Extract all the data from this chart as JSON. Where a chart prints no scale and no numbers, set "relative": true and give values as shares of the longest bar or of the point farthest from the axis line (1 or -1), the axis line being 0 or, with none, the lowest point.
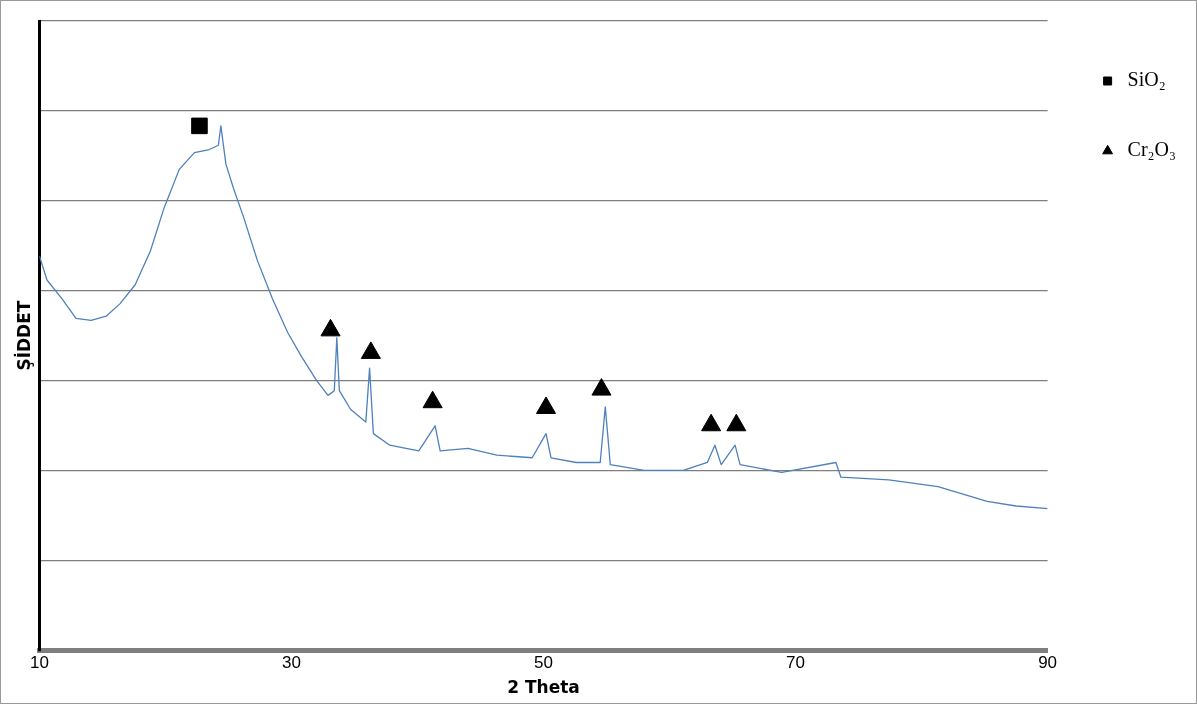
{
  "chart_data": {
    "type": "line",
    "relative": true,
    "xlabel": "2 Theta",
    "ylabel": "ŞİDDET",
    "xlim": [
      10,
      90
    ],
    "xticks": [
      10,
      30,
      50,
      70,
      90
    ],
    "grid": "y",
    "legend": "right",
    "series": [
      {
        "type": "line",
        "color": "#4f81bd",
        "marker": "none",
        "x": [
          10,
          10.6,
          11.8,
          12.9,
          14.1,
          15.3,
          16.4,
          17.6,
          18.8,
          19.9,
          21.1,
          22.3,
          23.4,
          24.2,
          24.4,
          24.8,
          25.4,
          26.2,
          27.3,
          28.5,
          29.7,
          30.8,
          32.0,
          32.9,
          33.4,
          33.6,
          33.8,
          34.7,
          35.9,
          36.2,
          36.5,
          37.8,
          40.1,
          41.4,
          41.8,
          44.0,
          46.3,
          49.1,
          50.2,
          50.6,
          52.6,
          54.5,
          54.9,
          55.3,
          58.0,
          61.1,
          63.0,
          63.6,
          64.1,
          65.2,
          65.6,
          68.9,
          73.2,
          73.6,
          77.4,
          81.3,
          85.2,
          87.5,
          90
        ],
        "values": [
          0.752,
          0.706,
          0.67,
          0.633,
          0.629,
          0.637,
          0.661,
          0.697,
          0.761,
          0.844,
          0.917,
          0.949,
          0.954,
          0.963,
          1,
          0.927,
          0.881,
          0.826,
          0.743,
          0.67,
          0.606,
          0.56,
          0.514,
          0.486,
          0.495,
          0.596,
          0.495,
          0.459,
          0.435,
          0.538,
          0.413,
          0.391,
          0.38,
          0.428,
          0.38,
          0.385,
          0.372,
          0.367,
          0.413,
          0.367,
          0.358,
          0.358,
          0.464,
          0.354,
          0.343,
          0.343,
          0.358,
          0.391,
          0.354,
          0.391,
          0.354,
          0.339,
          0.358,
          0.33,
          0.325,
          0.312,
          0.284,
          0.275,
          0.27
        ]
      },
      {
        "type": "scatter",
        "name": "SiO₂",
        "color": "#000000",
        "marker": "square",
        "x": [
          22.7
        ],
        "values": [
          1
        ]
      },
      {
        "type": "scatter",
        "name": "Cr₂O₃",
        "color": "#000000",
        "marker": "triangle",
        "x": [
          33.1,
          36.3,
          41.2,
          50.2,
          54.6,
          63.3,
          65.3
        ],
        "values": [
          0.61,
          0.567,
          0.473,
          0.462,
          0.497,
          0.429,
          0.429
        ]
      }
    ]
  }
}
